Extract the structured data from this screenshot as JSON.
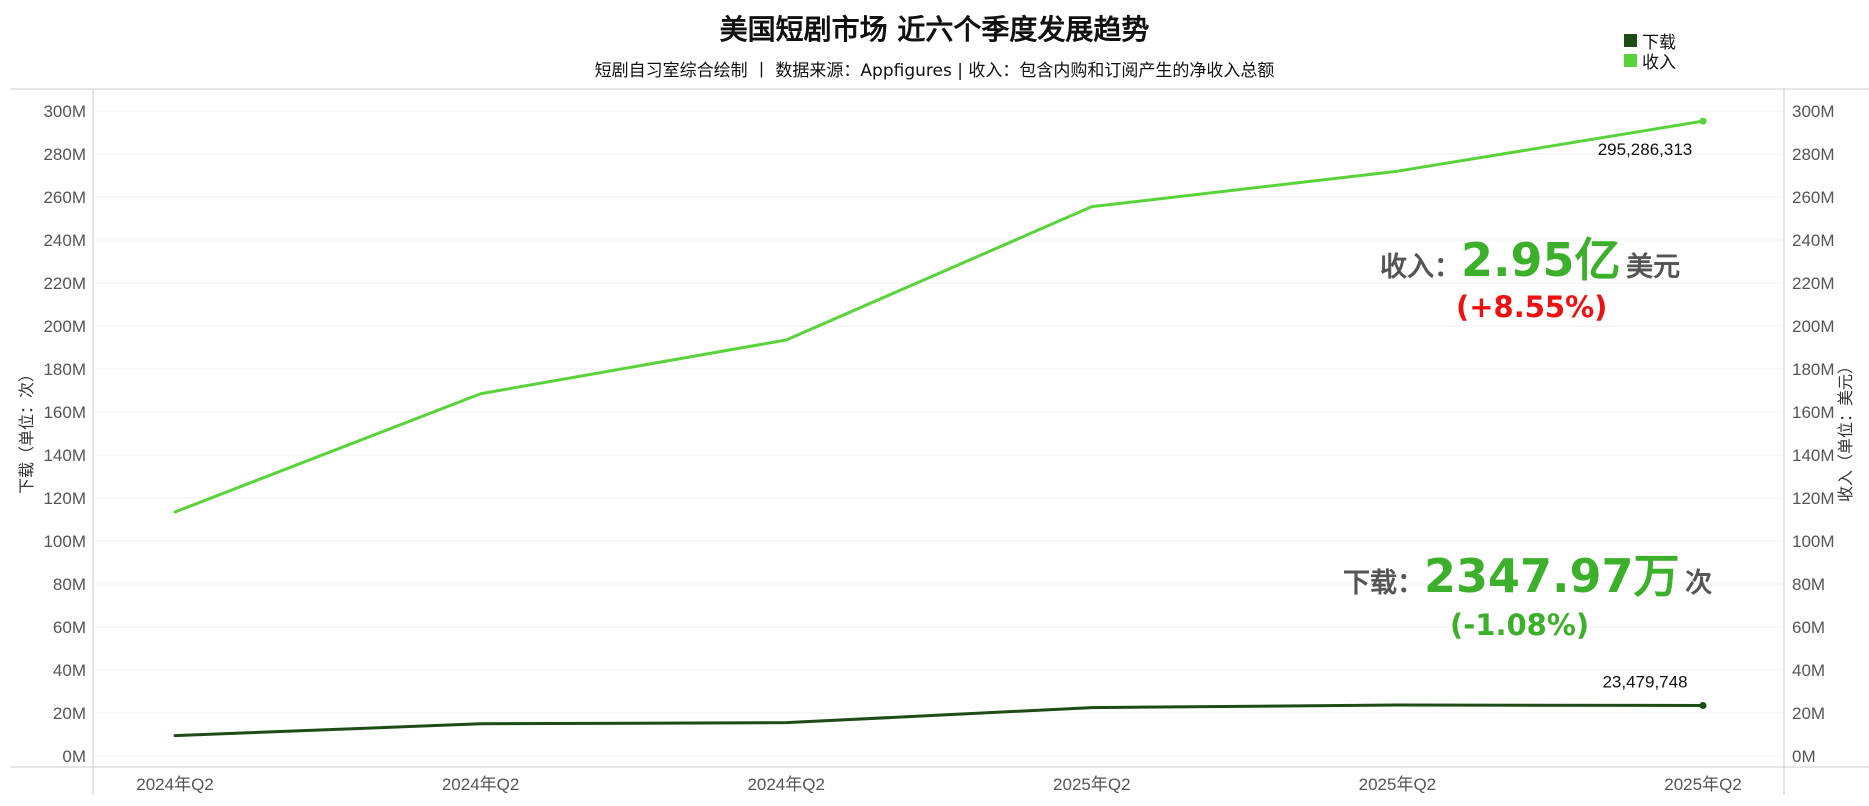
{
  "title": "美国短剧市场 近六个季度发展趋势",
  "subtitle": "短剧自习室综合绘制 丨 数据来源：Appfigures | 收入：包含内购和订阅产生的净收入总额",
  "legend": [
    {
      "label": "下载",
      "color": "#1d4d14"
    },
    {
      "label": "收入",
      "color": "#58d43a"
    }
  ],
  "colors": {
    "download_line": "#1d4d14",
    "revenue_line": "#58d43a",
    "highlight": "#3cb02a",
    "up": "#ee1111",
    "down": "#3cb02a"
  },
  "annotations": {
    "revenue": {
      "label": "收入：",
      "value": "2.95亿",
      "unit": "美元",
      "change": "(+8.55%)"
    },
    "downloads": {
      "label": "下载：",
      "value": "2347.97万",
      "unit": "次",
      "change": "(-1.08%)"
    }
  },
  "chart_data": {
    "type": "line",
    "categories": [
      "2024年Q2",
      "2024年Q2",
      "2024年Q2",
      "2025年Q2",
      "2025年Q2",
      "2025年Q2"
    ],
    "series": [
      {
        "name": "下载",
        "axis": "left",
        "values": [
          9500000,
          15000000,
          15500000,
          22500000,
          23736000,
          23479748
        ],
        "end_label": "23,479,748"
      },
      {
        "name": "收入",
        "axis": "right",
        "values": [
          113500000,
          168500000,
          193500000,
          255500000,
          272000000,
          295286313
        ],
        "end_label": "295,286,313"
      }
    ],
    "ylabel_left": "下载（单位：次）",
    "ylabel_right": "收入（单位：美元）",
    "ylim": [
      0,
      300000000
    ],
    "yticks": [
      0,
      20000000,
      40000000,
      60000000,
      80000000,
      100000000,
      120000000,
      140000000,
      160000000,
      180000000,
      200000000,
      220000000,
      240000000,
      260000000,
      280000000,
      300000000
    ],
    "ytick_labels": [
      "0M",
      "20M",
      "40M",
      "60M",
      "80M",
      "100M",
      "120M",
      "140M",
      "160M",
      "180M",
      "200M",
      "220M",
      "240M",
      "260M",
      "280M",
      "300M"
    ],
    "grid": true
  }
}
